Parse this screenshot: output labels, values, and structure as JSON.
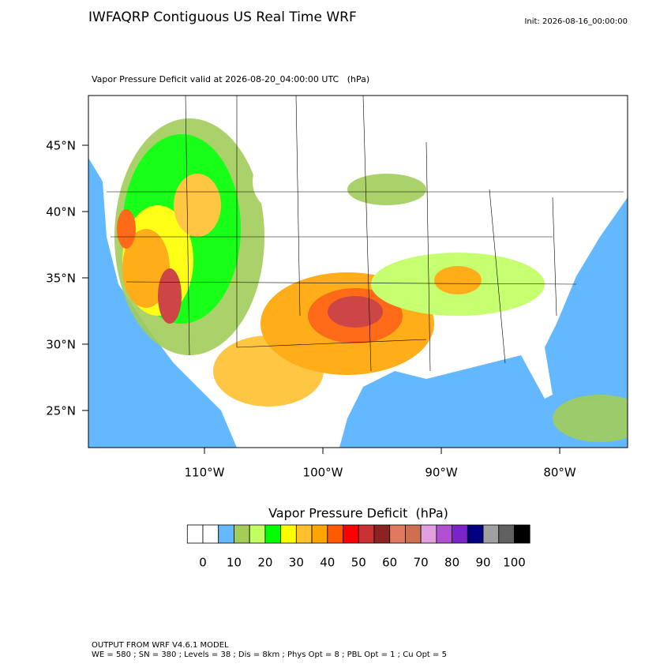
{
  "header": {
    "title": "IWFAQRP Contiguous US Real Time WRF",
    "init": "Init: 2026-08-16_00:00:00"
  },
  "map": {
    "subtitle": "Vapor Pressure Deficit valid at 2026-08-20_04:00:00 UTC   (hPa)",
    "xlim": [
      -119.8,
      -74.27
    ],
    "ylim": [
      22.2,
      48.75
    ],
    "xticks": [
      {
        "value": -110,
        "label": "110°W"
      },
      {
        "value": -100,
        "label": "100°W"
      },
      {
        "value": -90,
        "label": "90°W"
      },
      {
        "value": -80,
        "label": "80°W"
      }
    ],
    "yticks": [
      {
        "value": 25,
        "label": "25°N"
      },
      {
        "value": 30,
        "label": "30°N"
      },
      {
        "value": 35,
        "label": "35°N"
      },
      {
        "value": 40,
        "label": "40°N"
      },
      {
        "value": 45,
        "label": "45°N"
      }
    ]
  },
  "colorbar": {
    "title": "Vapor Pressure Deficit  (hPa)",
    "ticks": [
      0,
      10,
      20,
      30,
      40,
      50,
      60,
      70,
      80,
      90,
      100
    ],
    "colors": [
      "#ffffff",
      "#ffffff",
      "#63b8ff",
      "#a2cd5a",
      "#c0ff60",
      "#00ff00",
      "#ffff00",
      "#ffc030",
      "#ffa500",
      "#ff5a00",
      "#ff0000",
      "#c83232",
      "#8b2323",
      "#e07a5f",
      "#cd6f50",
      "#e0a0e0",
      "#b050d0",
      "#7b22c8",
      "#000080",
      "#a0a0a0",
      "#606060",
      "#000000"
    ]
  },
  "footer": {
    "lines": [
      "OUTPUT FROM WRF V4.6.1 MODEL",
      "WE = 580 ; SN = 380 ; Levels = 38 ; Dis = 8km ; Phys Opt = 8 ; PBL Opt = 1 ; Cu Opt = 5"
    ]
  }
}
